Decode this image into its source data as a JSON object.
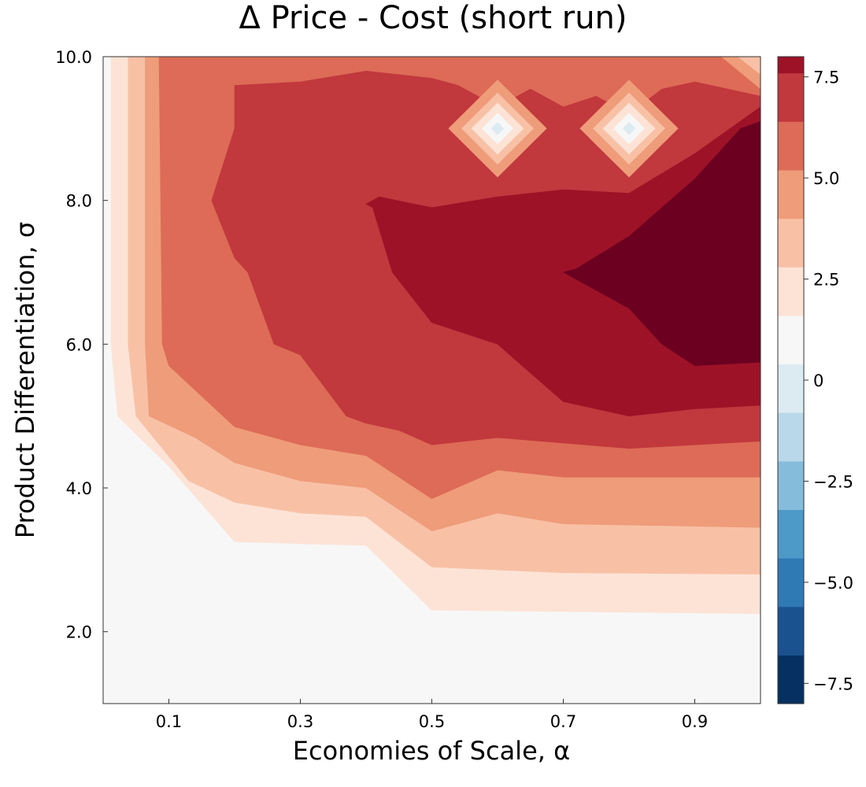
{
  "chart_data": {
    "type": "heatmap",
    "subtype": "filled-contour",
    "title": "Δ Price - Cost (short run)",
    "xlabel": "Economies of Scale, α",
    "ylabel": "Product Differentiation, σ",
    "xlim": [
      0.0,
      1.0
    ],
    "ylim": [
      1.0,
      10.0
    ],
    "x_ticks": [
      0.1,
      0.3,
      0.5,
      0.7,
      0.9
    ],
    "x_tick_labels": [
      "0.1",
      "0.3",
      "0.5",
      "0.7",
      "0.9"
    ],
    "y_ticks": [
      2.0,
      4.0,
      6.0,
      8.0,
      10.0
    ],
    "y_tick_labels": [
      "2.0",
      "4.0",
      "6.0",
      "8.0",
      "10.0"
    ],
    "grid": false,
    "colorbar": {
      "position": "right",
      "range": [
        -8.0,
        8.0
      ],
      "ticks": [
        -7.5,
        -5.0,
        -2.5,
        0,
        2.5,
        5.0,
        7.5
      ],
      "tick_labels": [
        "−7.5",
        "−5.0",
        "−2.5",
        "0",
        "2.5",
        "5.0",
        "7.5"
      ],
      "bands": [
        {
          "range": [
            -8.0,
            -6.8
          ],
          "color": "#053061"
        },
        {
          "range": [
            -6.8,
            -5.6
          ],
          "color": "#1a5290"
        },
        {
          "range": [
            -5.6,
            -4.4
          ],
          "color": "#2f79b5"
        },
        {
          "range": [
            -4.4,
            -3.2
          ],
          "color": "#4d99c8"
        },
        {
          "range": [
            -3.2,
            -2.0
          ],
          "color": "#86bcdb"
        },
        {
          "range": [
            -2.0,
            -0.8
          ],
          "color": "#b9d8ea"
        },
        {
          "range": [
            -0.8,
            0.4
          ],
          "color": "#dceaf2"
        },
        {
          "range": [
            0.4,
            1.6
          ],
          "color": "#f7f7f7"
        },
        {
          "range": [
            1.6,
            2.8
          ],
          "color": "#fde3d6"
        },
        {
          "range": [
            2.8,
            4.0
          ],
          "color": "#f8c1a6"
        },
        {
          "range": [
            4.0,
            5.2
          ],
          "color": "#ef9c7a"
        },
        {
          "range": [
            5.2,
            6.4
          ],
          "color": "#dd6b57"
        },
        {
          "range": [
            6.4,
            7.6
          ],
          "color": "#c1383d"
        },
        {
          "range": [
            7.6,
            8.0
          ],
          "color": "#9e1228"
        }
      ]
    },
    "regions": [
      {
        "level": 0,
        "color": "#f7f7f7",
        "points": [
          [
            0,
            1
          ],
          [
            1,
            1
          ],
          [
            1,
            10
          ],
          [
            0,
            10
          ]
        ]
      },
      {
        "level": 1,
        "color": "#fde3d6",
        "points": [
          [
            0.012,
            10
          ],
          [
            0.012,
            6
          ],
          [
            0.022,
            5
          ],
          [
            0.1,
            4.3
          ],
          [
            0.2,
            3.25
          ],
          [
            0.4,
            3.2
          ],
          [
            0.5,
            2.3
          ],
          [
            1,
            2.25
          ],
          [
            1,
            10
          ]
        ]
      },
      {
        "level": 2,
        "color": "#f8c1a6",
        "points": [
          [
            0.038,
            10
          ],
          [
            0.038,
            6
          ],
          [
            0.05,
            5
          ],
          [
            0.13,
            4.1
          ],
          [
            0.2,
            3.8
          ],
          [
            0.3,
            3.65
          ],
          [
            0.4,
            3.6
          ],
          [
            0.5,
            2.9
          ],
          [
            0.7,
            2.82
          ],
          [
            1,
            2.8
          ],
          [
            1,
            10
          ]
        ]
      },
      {
        "level": 3,
        "color": "#ef9c7a",
        "points": [
          [
            0.064,
            10
          ],
          [
            0.064,
            6
          ],
          [
            0.07,
            5
          ],
          [
            0.14,
            4.7
          ],
          [
            0.2,
            4.35
          ],
          [
            0.3,
            4.1
          ],
          [
            0.4,
            4.0
          ],
          [
            0.5,
            3.4
          ],
          [
            0.6,
            3.65
          ],
          [
            0.7,
            3.5
          ],
          [
            1,
            3.45
          ],
          [
            1,
            10
          ]
        ]
      },
      {
        "level": 4,
        "color": "#dd6b57",
        "points": [
          [
            0.085,
            10
          ],
          [
            0.09,
            6
          ],
          [
            0.1,
            5.7
          ],
          [
            0.2,
            4.85
          ],
          [
            0.3,
            4.6
          ],
          [
            0.4,
            4.45
          ],
          [
            0.5,
            3.85
          ],
          [
            0.6,
            4.25
          ],
          [
            0.7,
            4.15
          ],
          [
            1,
            4.15
          ],
          [
            1,
            10
          ]
        ]
      },
      {
        "level": 5,
        "color": "#c1383d",
        "points": [
          [
            0.2,
            9.6
          ],
          [
            0.3,
            9.65
          ],
          [
            0.4,
            9.8
          ],
          [
            0.5,
            9.7
          ],
          [
            0.54,
            9.6
          ],
          [
            0.6,
            9.3
          ],
          [
            0.65,
            9.55
          ],
          [
            0.7,
            9.3
          ],
          [
            0.75,
            9.45
          ],
          [
            0.8,
            9.2
          ],
          [
            0.85,
            9.55
          ],
          [
            0.9,
            9.65
          ],
          [
            1,
            9.45
          ],
          [
            1,
            4.65
          ],
          [
            0.8,
            4.55
          ],
          [
            0.6,
            4.7
          ],
          [
            0.5,
            4.6
          ],
          [
            0.45,
            4.8
          ],
          [
            0.4,
            4.9
          ],
          [
            0.37,
            5
          ],
          [
            0.3,
            5.85
          ],
          [
            0.26,
            6.0
          ],
          [
            0.22,
            7.0
          ],
          [
            0.2,
            7.2
          ],
          [
            0.165,
            8.0
          ],
          [
            0.2,
            9.0
          ]
        ]
      },
      {
        "level": 6,
        "color": "#9e1228",
        "points": [
          [
            0.4,
            7.95
          ],
          [
            0.42,
            8.05
          ],
          [
            0.5,
            7.9
          ],
          [
            0.6,
            8.05
          ],
          [
            0.7,
            8.15
          ],
          [
            0.8,
            8.1
          ],
          [
            0.9,
            8.65
          ],
          [
            1,
            9.3
          ],
          [
            1,
            5.15
          ],
          [
            0.9,
            5.1
          ],
          [
            0.8,
            5.0
          ],
          [
            0.7,
            5.2
          ],
          [
            0.6,
            6.0
          ],
          [
            0.5,
            6.3
          ],
          [
            0.44,
            7.0
          ],
          [
            0.41,
            7.9
          ]
        ]
      },
      {
        "level": 7,
        "color": "#6b0020",
        "points": [
          [
            0.7,
            7.0
          ],
          [
            0.72,
            7.05
          ],
          [
            0.8,
            7.5
          ],
          [
            0.9,
            8.3
          ],
          [
            0.97,
            9.0
          ],
          [
            1,
            9.1
          ],
          [
            1,
            5.75
          ],
          [
            0.9,
            5.7
          ],
          [
            0.85,
            6.0
          ],
          [
            0.8,
            6.5
          ],
          [
            0.72,
            6.9
          ]
        ]
      }
    ],
    "diamonds": [
      {
        "x": 0.6,
        "y": 9.0,
        "rings": [
          {
            "r": [
              0.075,
              0.68
            ],
            "color": "#ef9c7a"
          },
          {
            "r": [
              0.055,
              0.5
            ],
            "color": "#f8c1a6"
          },
          {
            "r": [
              0.04,
              0.36
            ],
            "color": "#fde3d6"
          },
          {
            "r": [
              0.024,
              0.22
            ],
            "color": "#f7f7f7"
          },
          {
            "r": [
              0.01,
              0.09
            ],
            "color": "#dceaf2"
          }
        ]
      },
      {
        "x": 0.8,
        "y": 9.0,
        "rings": [
          {
            "r": [
              0.075,
              0.68
            ],
            "color": "#ef9c7a"
          },
          {
            "r": [
              0.055,
              0.5
            ],
            "color": "#f8c1a6"
          },
          {
            "r": [
              0.04,
              0.36
            ],
            "color": "#fde3d6"
          },
          {
            "r": [
              0.024,
              0.22
            ],
            "color": "#f7f7f7"
          },
          {
            "r": [
              0.01,
              0.09
            ],
            "color": "#dceaf2"
          }
        ]
      }
    ],
    "corner_bands": [
      {
        "color": "#ef9c7a",
        "points": [
          [
            0.94,
            10
          ],
          [
            1,
            10
          ],
          [
            1,
            9.55
          ]
        ]
      },
      {
        "color": "#f8c1a6",
        "points": [
          [
            0.965,
            10
          ],
          [
            1,
            10
          ],
          [
            1,
            9.75
          ]
        ]
      }
    ]
  }
}
